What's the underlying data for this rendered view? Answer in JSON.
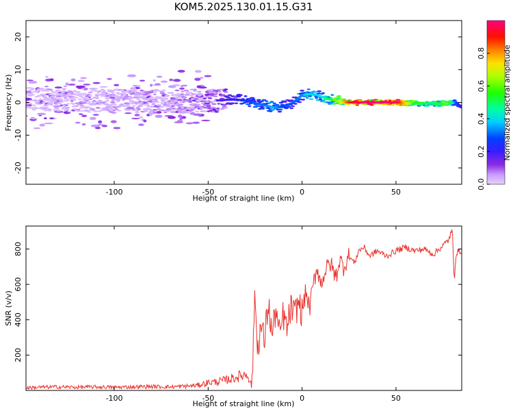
{
  "title": "KOM5.2025.130.01.15.G31",
  "colors": {
    "snr_line": "#e8302a",
    "axis": "#000000",
    "background": "#ffffff"
  },
  "chart_data": [
    {
      "type": "heatmap",
      "title": "KOM5.2025.130.01.15.G31",
      "xlabel": "Height of straight line (km)",
      "ylabel": "Frequency (Hz)",
      "xlim": [
        -147,
        85
      ],
      "ylim": [
        -25,
        25
      ],
      "xticks": [
        "-100",
        "-50",
        "0",
        "50"
      ],
      "yticks": [
        "-20",
        "-10",
        "0",
        "10",
        "20"
      ],
      "colorbar": {
        "label": "Normalized spectral amplitude",
        "range": [
          0.0,
          1.0
        ],
        "ticks": [
          "0.0",
          "0.2",
          "0.4",
          "0.6",
          "0.8"
        ],
        "colormap": "purple-blue-cyan-green-yellow-orange-red-magenta"
      },
      "ridge": {
        "x": [
          -147,
          -130,
          -110,
          -90,
          -70,
          -55,
          -45,
          -40,
          -35,
          -30,
          -25,
          -20,
          -15,
          -10,
          -5,
          0,
          3,
          8,
          12,
          16,
          20,
          25,
          30,
          40,
          50,
          60,
          70,
          78,
          82,
          85
        ],
        "y": [
          1,
          0.8,
          0.5,
          0.5,
          0.3,
          0.5,
          0.6,
          0.8,
          0.9,
          0.5,
          -0.2,
          -0.9,
          -1.5,
          -1.2,
          -0.2,
          2.2,
          2.6,
          2.2,
          1.4,
          0.7,
          0.3,
          0,
          0,
          0,
          0,
          -0.3,
          -0.3,
          -0.3,
          0,
          -1.5
        ],
        "amplitude": [
          0.05,
          0.06,
          0.07,
          0.08,
          0.09,
          0.12,
          0.16,
          0.2,
          0.22,
          0.27,
          0.3,
          0.32,
          0.36,
          0.28,
          0.3,
          0.33,
          0.42,
          0.38,
          0.45,
          0.55,
          0.68,
          0.88,
          0.97,
          1.0,
          0.98,
          0.55,
          0.5,
          0.62,
          0.3,
          0.18
        ]
      }
    },
    {
      "type": "line",
      "xlabel": "Height of straight line (km)",
      "ylabel": "SNR (v/v)",
      "xlim": [
        -147,
        85
      ],
      "ylim": [
        0,
        930
      ],
      "xticks": [
        "-100",
        "-50",
        "0",
        "50"
      ],
      "yticks": [
        "200",
        "400",
        "600",
        "800"
      ],
      "series": [
        {
          "x": [
            -147,
            -140,
            -130,
            -120,
            -110,
            -100,
            -90,
            -80,
            -70,
            -60,
            -55,
            -50,
            -45,
            -40,
            -35,
            -32,
            -29,
            -27,
            -26,
            -25,
            -24,
            -22,
            -20,
            -18,
            -16,
            -14,
            -12,
            -10,
            -8,
            -6,
            -4,
            -2,
            0,
            2,
            4,
            6,
            8,
            10,
            12,
            15,
            18,
            20,
            22,
            25,
            28,
            30,
            33,
            36,
            40,
            45,
            50,
            55,
            60,
            65,
            70,
            75,
            78,
            80,
            81,
            82,
            85
          ],
          "y": [
            15,
            18,
            20,
            18,
            20,
            18,
            20,
            22,
            20,
            25,
            30,
            45,
            50,
            60,
            75,
            85,
            95,
            30,
            220,
            600,
            230,
            360,
            280,
            500,
            310,
            460,
            300,
            430,
            340,
            470,
            420,
            500,
            440,
            560,
            460,
            600,
            700,
            600,
            670,
            720,
            640,
            740,
            700,
            760,
            720,
            790,
            810,
            760,
            790,
            760,
            790,
            810,
            790,
            800,
            770,
            820,
            850,
            910,
            620,
            780,
            790
          ]
        }
      ]
    }
  ]
}
